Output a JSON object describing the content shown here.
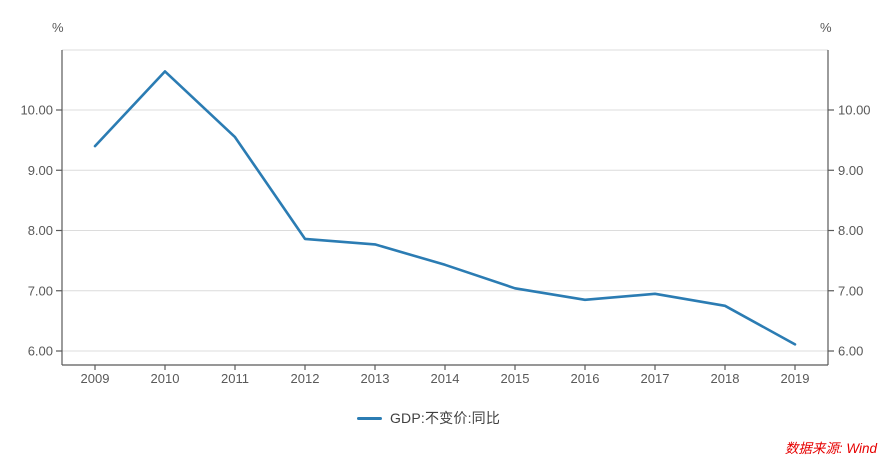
{
  "chart_data": {
    "type": "line",
    "title": "",
    "categories": [
      "2009",
      "2010",
      "2011",
      "2012",
      "2013",
      "2014",
      "2015",
      "2016",
      "2017",
      "2018",
      "2019"
    ],
    "series": [
      {
        "name": "GDP:不变价:同比",
        "values": [
          9.4,
          10.64,
          9.55,
          7.86,
          7.77,
          7.43,
          7.04,
          6.85,
          6.95,
          6.75,
          6.11
        ],
        "color": "#2b7cb3"
      }
    ],
    "y_ticks": [
      "6.00",
      "7.00",
      "8.00",
      "9.00",
      "10.00"
    ],
    "y_tick_values": [
      6,
      7,
      8,
      9,
      10
    ],
    "ylim": [
      5.75,
      11.0
    ],
    "left_axis_unit": "%",
    "right_axis_unit": "%",
    "xlabel": "",
    "ylabel": "",
    "grid": "horizontal-only",
    "legend_position": "bottom-center"
  },
  "legend": {
    "label": "GDP:不变价:同比"
  },
  "source": {
    "label": "数据来源: Wind",
    "color": "#e60000"
  },
  "colors": {
    "line": "#2b7cb3",
    "axis": "#595959",
    "grid": "#dcdcdc",
    "tick_label": "#595959",
    "legend_text": "#404040",
    "background": "#ffffff"
  }
}
